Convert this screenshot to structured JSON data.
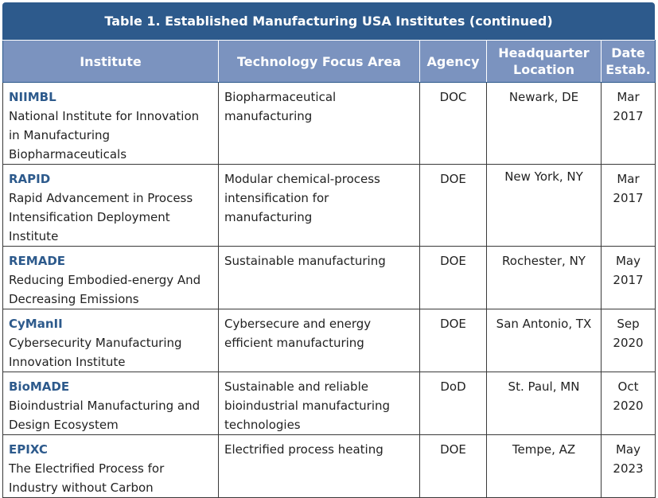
{
  "title": "Table 1. Established Manufacturing USA Institutes (continued)",
  "columns": [
    "Institute",
    "Technology Focus Area",
    "Agency",
    "Headquarter\nLocation",
    "Date\nEstab."
  ],
  "rows": [
    {
      "abbr": "NIIMBL",
      "name": "National Institute for Innovation in Manufacturing Biopharmaceuticals",
      "focus": "Biopharmaceutical manufacturing",
      "agency": "DOC",
      "location": "Newark, DE",
      "date": "Mar 2017"
    },
    {
      "abbr": "RAPID",
      "name": "Rapid Advancement in Process Intensification Deployment Institute",
      "focus": "Modular chemical-process intensification for manufacturing",
      "agency": "DOE",
      "location": "New York, NY",
      "date": "Mar 2017"
    },
    {
      "abbr": "REMADE",
      "name": "Reducing Embodied-energy And Decreasing Emissions",
      "focus": "Sustainable manufacturing",
      "agency": "DOE",
      "location": "Rochester, NY",
      "date": "May 2017"
    },
    {
      "abbr": "CyManII",
      "name": "Cybersecurity Manufacturing Innovation Institute",
      "focus": "Cybersecure and energy efficient manufacturing",
      "agency": "DOE",
      "location": "San Antonio, TX",
      "date": "Sep 2020"
    },
    {
      "abbr": "BioMADE",
      "name": "Bioindustrial Manufacturing and Design Ecosystem",
      "focus": "Sustainable and reliable bioindustrial manufacturing technologies",
      "agency": "DoD",
      "location": "St. Paul, MN",
      "date": "Oct 2020"
    },
    {
      "abbr": "EPIXC",
      "name": "The Electrified Process for Industry without Carbon",
      "focus": "Electrified process heating",
      "agency": "DOE",
      "location": "Tempe, AZ",
      "date": "May 2023"
    }
  ]
}
